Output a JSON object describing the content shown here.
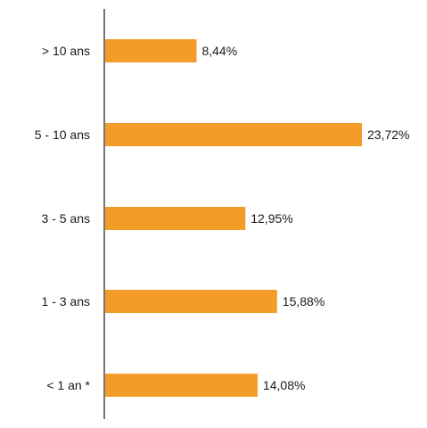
{
  "chart_data": {
    "type": "bar",
    "orientation": "horizontal",
    "categories": [
      "> 10 ans",
      "5 - 10 ans",
      "3 - 5 ans",
      "1 - 3 ans",
      "< 1 an *"
    ],
    "values": [
      8.44,
      23.72,
      12.95,
      15.88,
      14.08
    ],
    "value_labels": [
      "8,44%",
      "23,72%",
      "12,95%",
      "15,88%",
      "14,08%"
    ],
    "bar_color": "#F39C28",
    "axis_color": "#1a1a1a",
    "grid": false,
    "legend": "none"
  }
}
